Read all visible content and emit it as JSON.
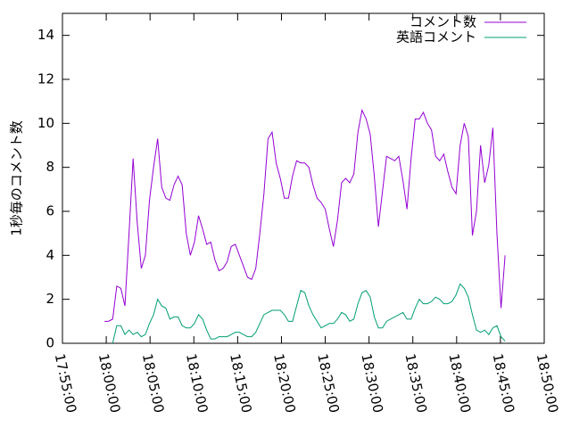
{
  "chart_data": {
    "type": "line",
    "ylabel": "1秒毎のコメント数",
    "x": [
      "17:59:48",
      "18:00:16",
      "18:00:44",
      "18:01:12",
      "18:01:40",
      "18:02:08",
      "18:02:36",
      "18:03:04",
      "18:03:32",
      "18:04:00",
      "18:04:28",
      "18:04:56",
      "18:05:24",
      "18:05:52",
      "18:06:20",
      "18:06:48",
      "18:07:16",
      "18:07:44",
      "18:08:12",
      "18:08:40",
      "18:09:08",
      "18:09:36",
      "18:10:04",
      "18:10:32",
      "18:11:00",
      "18:11:28",
      "18:11:56",
      "18:12:24",
      "18:12:52",
      "18:13:20",
      "18:13:48",
      "18:14:16",
      "18:14:44",
      "18:15:12",
      "18:15:40",
      "18:16:08",
      "18:16:36",
      "18:17:04",
      "18:17:32",
      "18:18:00",
      "18:18:28",
      "18:18:56",
      "18:19:24",
      "18:19:52",
      "18:20:20",
      "18:20:48",
      "18:21:16",
      "18:21:44",
      "18:22:12",
      "18:22:40",
      "18:23:08",
      "18:23:36",
      "18:24:04",
      "18:24:32",
      "18:25:00",
      "18:25:28",
      "18:25:56",
      "18:26:24",
      "18:26:52",
      "18:27:20",
      "18:27:48",
      "18:28:16",
      "18:28:44",
      "18:29:12",
      "18:29:40",
      "18:30:08",
      "18:30:36",
      "18:31:04",
      "18:31:32",
      "18:32:00",
      "18:32:28",
      "18:32:56",
      "18:33:24",
      "18:33:52",
      "18:34:20",
      "18:34:48",
      "18:35:16",
      "18:35:44",
      "18:36:12",
      "18:36:40",
      "18:37:08",
      "18:37:36",
      "18:38:04",
      "18:38:32",
      "18:39:00",
      "18:39:28",
      "18:39:56",
      "18:40:24",
      "18:40:52",
      "18:41:20",
      "18:41:48",
      "18:42:16",
      "18:42:44",
      "18:43:12",
      "18:43:40",
      "18:44:08",
      "18:44:36",
      "18:45:04",
      "18:45:32"
    ],
    "series": [
      {
        "name": "コメント数",
        "color": "#9400d3",
        "values": [
          1.0,
          1.0,
          1.1,
          2.6,
          2.5,
          1.7,
          5.0,
          8.4,
          5.5,
          3.4,
          4.0,
          6.5,
          8.0,
          9.3,
          7.1,
          6.6,
          6.5,
          7.2,
          7.6,
          7.2,
          5.0,
          4.0,
          4.6,
          5.8,
          5.2,
          4.5,
          4.6,
          3.8,
          3.3,
          3.4,
          3.7,
          4.4,
          4.5,
          4.0,
          3.5,
          3.0,
          2.9,
          3.4,
          5.0,
          6.8,
          9.3,
          9.6,
          8.2,
          7.5,
          6.6,
          6.6,
          7.6,
          8.3,
          8.2,
          8.2,
          8.0,
          7.2,
          6.6,
          6.4,
          6.1,
          5.2,
          4.4,
          5.6,
          7.3,
          7.5,
          7.3,
          7.7,
          9.6,
          10.6,
          10.2,
          9.5,
          7.6,
          5.3,
          6.9,
          8.5,
          8.4,
          8.3,
          8.5,
          7.4,
          6.1,
          8.4,
          10.2,
          10.2,
          10.5,
          10.0,
          9.7,
          8.5,
          8.3,
          8.6,
          7.8,
          7.1,
          6.8,
          9.0,
          10.0,
          9.4,
          4.9,
          6.0,
          9.0,
          7.3,
          8.1,
          9.8,
          5.0,
          1.6,
          4.0
        ]
      },
      {
        "name": "英語コメント",
        "color": "#009e73",
        "values": [
          null,
          null,
          0.0,
          0.8,
          0.8,
          0.4,
          0.6,
          0.4,
          0.5,
          0.3,
          0.4,
          0.9,
          1.3,
          2.0,
          1.7,
          1.6,
          1.1,
          1.2,
          1.2,
          0.8,
          0.7,
          0.7,
          0.9,
          1.3,
          1.1,
          0.6,
          0.2,
          0.2,
          0.3,
          0.3,
          0.3,
          0.4,
          0.5,
          0.5,
          0.4,
          0.3,
          0.3,
          0.5,
          0.9,
          1.3,
          1.4,
          1.5,
          1.5,
          1.5,
          1.3,
          1.0,
          1.0,
          1.7,
          2.4,
          2.3,
          1.7,
          1.3,
          1.0,
          0.7,
          0.8,
          0.9,
          0.9,
          1.1,
          1.4,
          1.3,
          1.0,
          1.1,
          1.8,
          2.3,
          2.4,
          2.1,
          1.2,
          0.7,
          0.7,
          1.0,
          1.1,
          1.2,
          1.3,
          1.4,
          1.1,
          1.1,
          1.6,
          2.0,
          1.8,
          1.8,
          1.9,
          2.1,
          2.0,
          1.8,
          1.8,
          1.9,
          2.2,
          2.7,
          2.5,
          2.1,
          1.3,
          0.6,
          0.5,
          0.6,
          0.4,
          0.7,
          0.8,
          0.3,
          0.1
        ]
      }
    ],
    "xlim": [
      "17:55:00",
      "18:50:00"
    ],
    "xticks": [
      "17:55:00",
      "18:00:00",
      "18:05:00",
      "18:10:00",
      "18:15:00",
      "18:20:00",
      "18:25:00",
      "18:30:00",
      "18:35:00",
      "18:40:00",
      "18:45:00",
      "18:50:00"
    ],
    "ylim": [
      0,
      15
    ],
    "yticks": [
      0,
      2,
      4,
      6,
      8,
      10,
      12,
      14
    ],
    "legend": "top-right"
  }
}
